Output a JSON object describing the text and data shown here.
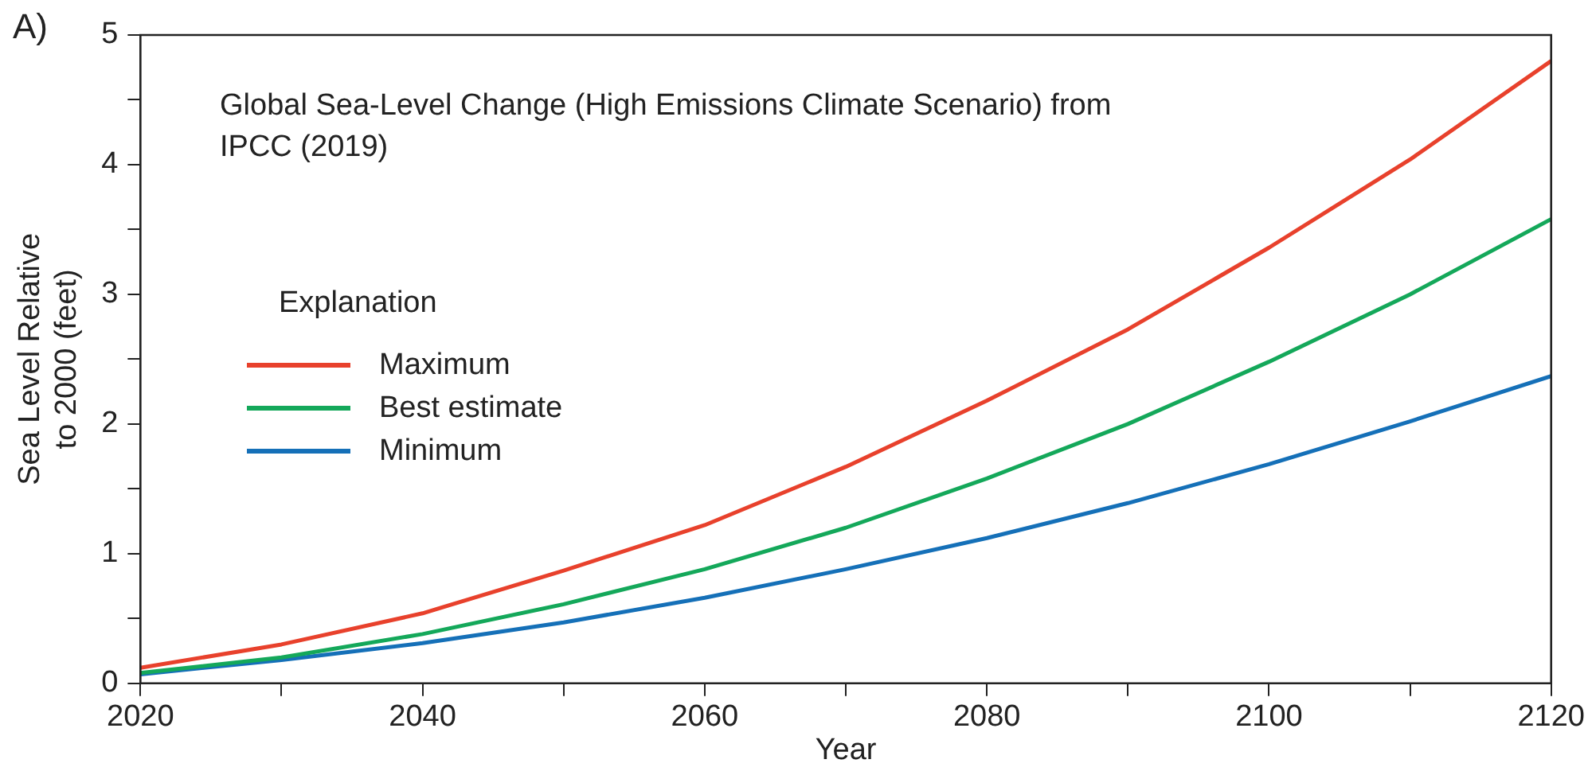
{
  "chart_data": {
    "type": "line",
    "title": "Global Sea-Level Change (High Emissions Climate Scenario) from IPCC (2019)",
    "xlabel": "Year",
    "ylabel": "Sea Level Relative to 2000 (feet)",
    "legend_title": "Explanation",
    "annotations": [
      "A)"
    ],
    "x": [
      2020,
      2030,
      2040,
      2050,
      2060,
      2070,
      2080,
      2090,
      2100,
      2110,
      2120
    ],
    "series": [
      {
        "name": "Maximum",
        "color": "#e8412c",
        "values": [
          0.12,
          0.3,
          0.54,
          0.87,
          1.22,
          1.67,
          2.18,
          2.73,
          3.36,
          4.04,
          4.8
        ]
      },
      {
        "name": "Best estimate",
        "color": "#14a85a",
        "values": [
          0.08,
          0.2,
          0.38,
          0.61,
          0.88,
          1.2,
          1.58,
          2.0,
          2.48,
          3.0,
          3.58
        ]
      },
      {
        "name": "Minimum",
        "color": "#1570b8",
        "values": [
          0.07,
          0.18,
          0.31,
          0.47,
          0.66,
          0.88,
          1.12,
          1.39,
          1.69,
          2.02,
          2.37
        ]
      }
    ],
    "xlim": [
      2020,
      2120
    ],
    "xticks": [
      2020,
      {
        "value": 2030,
        "label": null
      },
      2040,
      {
        "value": 2050,
        "label": null
      },
      2060,
      {
        "value": 2070,
        "label": null
      },
      2080,
      {
        "value": 2090,
        "label": null
      },
      2100,
      {
        "value": 2110,
        "label": null
      },
      2120
    ],
    "ylim": [
      0,
      5
    ],
    "yticks": [
      0,
      {
        "value": 0.5,
        "label": null
      },
      1,
      {
        "value": 1.5,
        "label": null
      },
      2,
      {
        "value": 2.5,
        "label": null
      },
      3,
      {
        "value": 3.5,
        "label": null
      },
      4,
      {
        "value": 4.5,
        "label": null
      },
      5
    ],
    "grid": false,
    "legend": "left",
    "marker": "none",
    "line_style": "solid"
  }
}
